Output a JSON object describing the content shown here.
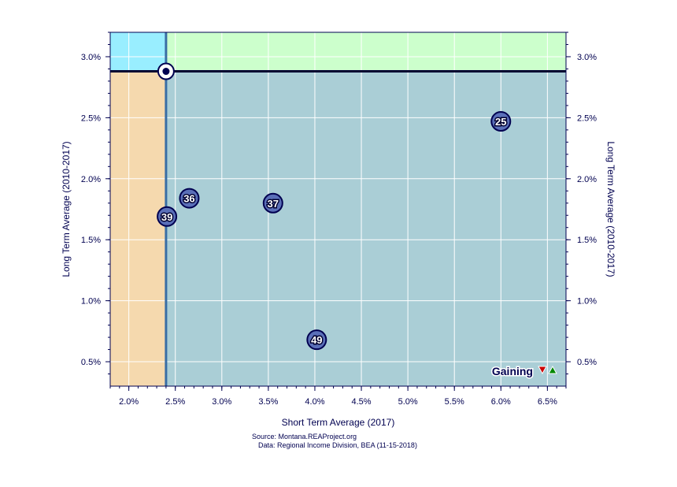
{
  "chart_data": {
    "type": "scatter",
    "xlabel": "Short Term Average (2017)",
    "ylabel": "Long Term Average (2010-2017)",
    "ylabel_right": "Long Term Average (2010-2017)",
    "xlim": [
      1.8,
      6.7
    ],
    "ylim": [
      0.3,
      3.2
    ],
    "x_ticks": [
      2.0,
      2.5,
      3.0,
      3.5,
      4.0,
      4.5,
      5.0,
      5.5,
      6.0,
      6.5
    ],
    "x_tick_labels": [
      "2.0%",
      "2.5%",
      "3.0%",
      "3.5%",
      "4.0%",
      "4.5%",
      "5.0%",
      "5.5%",
      "6.0%",
      "6.5%"
    ],
    "y_ticks": [
      0.5,
      1.0,
      1.5,
      2.0,
      2.5,
      3.0
    ],
    "y_tick_labels": [
      "0.5%",
      "1.0%",
      "1.5%",
      "2.0%",
      "2.5%",
      "3.0%"
    ],
    "reference": {
      "x": 2.4,
      "y": 2.88
    },
    "points": [
      {
        "label": "25",
        "x": 6.0,
        "y": 2.47
      },
      {
        "label": "36",
        "x": 2.65,
        "y": 1.84
      },
      {
        "label": "37",
        "x": 3.55,
        "y": 1.8
      },
      {
        "label": "39",
        "x": 2.41,
        "y": 1.69
      },
      {
        "label": "49",
        "x": 4.02,
        "y": 0.68
      }
    ],
    "quadrant_colors": {
      "top_left": "#99EEFF",
      "top_right": "#CCFFCC",
      "bottom_left": "#F5D9AE",
      "bottom_right": "#AACED6"
    },
    "grid": true
  },
  "legend": {
    "label": "Gaining",
    "down_color": "#cc0000",
    "up_color": "#008800"
  },
  "source": {
    "line1": "Source: Montana.REAProject.org",
    "line2": "Data: Regional Income Division, BEA (11-15-2018)"
  }
}
